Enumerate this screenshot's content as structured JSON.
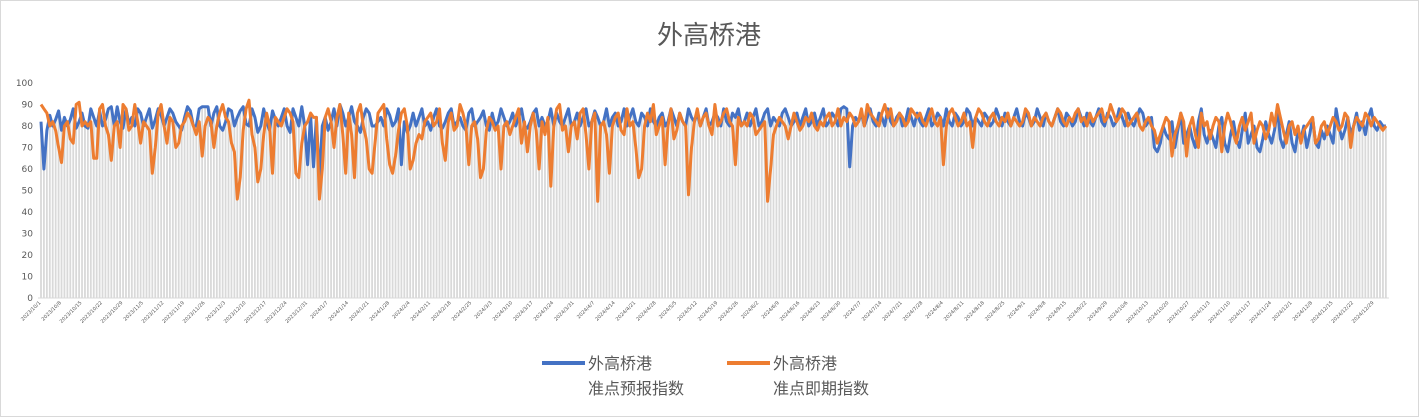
{
  "chart_data": {
    "type": "line",
    "title": "外高桥港",
    "xlabel": "",
    "ylabel": "",
    "ylim": [
      0,
      100
    ],
    "yticks": [
      0,
      10,
      20,
      30,
      40,
      50,
      60,
      70,
      80,
      90,
      100
    ],
    "grid": false,
    "legend_position": "bottom",
    "x_tick_labels": [
      "2023/10/1",
      "2023/10/8",
      "2023/10/15",
      "2023/10/22",
      "2023/10/29",
      "2023/11/5",
      "2023/11/12",
      "2023/11/19",
      "2023/11/26",
      "2023/12/3",
      "2023/12/10",
      "2023/12/17",
      "2023/12/24",
      "2023/12/31",
      "2024/1/7",
      "2024/1/14",
      "2024/1/21",
      "2024/1/28",
      "2024/2/4",
      "2024/2/11",
      "2024/2/18",
      "2024/2/25",
      "2024/3/3",
      "2024/3/10",
      "2024/3/17",
      "2024/3/24",
      "2024/3/31",
      "2024/4/7",
      "2024/4/14",
      "2024/4/21",
      "2024/4/28",
      "2024/5/5",
      "2024/5/12",
      "2024/5/19",
      "2024/5/26",
      "2024/6/2",
      "2024/6/9",
      "2024/6/16",
      "2024/6/23",
      "2024/6/30",
      "2024/7/7",
      "2024/7/14",
      "2024/7/21",
      "2024/7/28",
      "2024/8/4",
      "2024/8/11",
      "2024/8/18",
      "2024/8/25",
      "2024/9/1",
      "2024/9/8",
      "2024/9/15",
      "2024/9/22",
      "2024/9/29",
      "2024/10/6",
      "2024/10/13",
      "2024/10/20",
      "2024/10/27",
      "2024/11/3",
      "2024/11/10",
      "2024/11/17",
      "2024/11/24",
      "2024/12/1",
      "2024/12/8",
      "2024/12/15",
      "2024/12/22",
      "2024/12/29"
    ],
    "bar_color": "#d9d9d9",
    "series": [
      {
        "name_line1": "外高桥港",
        "name_line2": "准点预报指数",
        "color": "#4472C4",
        "values": [
          82,
          60,
          78,
          85,
          80,
          83,
          87,
          78,
          84,
          80,
          83,
          88,
          79,
          82,
          86,
          80,
          79,
          88,
          84,
          80,
          87,
          80,
          83,
          88,
          89,
          80,
          89,
          82,
          79,
          88,
          81,
          84,
          80,
          88,
          86,
          80,
          84,
          88,
          79,
          83,
          88,
          85,
          80,
          84,
          88,
          86,
          82,
          80,
          78,
          84,
          89,
          87,
          80,
          80,
          88,
          89,
          89,
          89,
          80,
          86,
          89,
          80,
          78,
          82,
          88,
          87,
          80,
          84,
          87,
          89,
          81,
          80,
          88,
          84,
          77,
          80,
          88,
          82,
          78,
          87,
          83,
          80,
          84,
          88,
          80,
          77,
          88,
          84,
          80,
          89,
          80,
          62,
          85,
          61,
          84,
          55,
          80,
          84,
          78,
          82,
          88,
          80,
          90,
          86,
          80,
          84,
          89,
          82,
          80,
          77,
          84,
          88,
          86,
          80,
          80,
          82,
          84,
          80,
          88,
          85,
          80,
          82,
          88,
          62,
          82,
          77,
          80,
          86,
          80,
          84,
          88,
          80,
          82,
          78,
          84,
          88,
          80,
          79,
          82,
          86,
          88,
          80,
          82,
          84,
          80,
          78,
          86,
          88,
          80,
          82,
          84,
          87,
          80,
          78,
          86,
          80,
          82,
          88,
          84,
          80,
          82,
          86,
          80,
          84,
          88,
          80,
          79,
          82,
          86,
          88,
          80,
          84,
          80,
          82,
          88,
          80,
          86,
          82,
          80,
          84,
          88,
          80,
          82,
          86,
          80,
          84,
          88,
          80,
          82,
          87,
          84,
          80,
          82,
          88,
          80,
          84,
          86,
          80,
          82,
          88,
          80,
          84,
          88,
          82,
          80,
          86,
          84,
          80,
          88,
          82,
          80,
          84,
          86,
          80,
          82,
          88,
          84,
          80,
          86,
          82,
          80,
          88,
          84,
          82,
          86,
          80,
          84,
          88,
          80,
          82,
          86,
          84,
          80,
          88,
          82,
          80,
          86,
          84,
          88,
          80,
          82,
          86,
          80,
          84,
          88,
          80,
          82,
          86,
          88,
          80,
          84,
          82,
          80,
          86,
          88,
          84,
          80,
          82,
          86,
          80,
          84,
          88,
          80,
          82,
          86,
          80,
          84,
          88,
          80,
          82,
          86,
          84,
          80,
          88,
          89,
          88,
          61,
          80,
          84,
          82,
          86,
          80,
          84,
          88,
          82,
          80,
          86,
          84,
          80,
          88,
          82,
          80,
          84,
          86,
          80,
          82,
          88,
          84,
          80,
          86,
          82,
          80,
          84,
          88,
          80,
          82,
          86,
          84,
          80,
          88,
          82,
          80,
          86,
          84,
          80,
          82,
          88,
          86,
          80,
          84,
          82,
          80,
          86,
          84,
          80,
          82,
          88,
          84,
          80,
          86,
          82,
          80,
          84,
          88,
          82,
          80,
          86,
          84,
          80,
          82,
          88,
          84,
          80,
          86,
          82,
          80,
          84,
          88,
          82,
          80,
          86,
          84,
          80,
          82,
          88,
          84,
          80,
          86,
          82,
          80,
          84,
          88,
          82,
          80,
          86,
          84,
          80,
          82,
          88,
          84,
          80,
          86,
          82,
          80,
          84,
          88,
          86,
          80,
          82,
          84,
          70,
          68,
          72,
          80,
          76,
          74,
          82,
          70,
          78,
          86,
          72,
          76,
          80,
          74,
          70,
          82,
          88,
          76,
          72,
          78,
          74,
          70,
          80,
          84,
          72,
          68,
          76,
          82,
          74,
          70,
          78,
          86,
          72,
          76,
          80,
          70,
          68,
          74,
          82,
          76,
          72,
          78,
          88,
          74,
          70,
          76,
          82,
          72,
          68,
          78,
          74,
          80,
          70,
          76,
          84,
          72,
          70,
          78,
          74,
          80,
          76,
          72,
          88,
          80,
          74,
          78,
          84,
          76,
          80,
          86,
          78,
          82,
          76,
          84,
          88,
          80,
          78,
          82,
          80,
          80
        ]
      },
      {
        "name_line1": "外高桥港",
        "name_line2": "准点即期指数",
        "color": "#ED7D31",
        "values": [
          90,
          88,
          86,
          80,
          82,
          78,
          70,
          63,
          80,
          82,
          74,
          72,
          90,
          91,
          80,
          82,
          80,
          82,
          65,
          65,
          88,
          90,
          80,
          76,
          64,
          80,
          82,
          70,
          90,
          88,
          78,
          80,
          90,
          82,
          72,
          82,
          80,
          78,
          58,
          70,
          86,
          90,
          80,
          72,
          84,
          82,
          70,
          72,
          80,
          82,
          86,
          84,
          80,
          76,
          82,
          66,
          80,
          84,
          82,
          70,
          80,
          86,
          90,
          84,
          82,
          72,
          68,
          46,
          56,
          78,
          88,
          92,
          76,
          70,
          54,
          60,
          76,
          86,
          80,
          58,
          84,
          82,
          80,
          84,
          88,
          86,
          82,
          58,
          56,
          72,
          80,
          82,
          86,
          84,
          84,
          46,
          60,
          84,
          88,
          82,
          70,
          84,
          90,
          76,
          58,
          86,
          76,
          56,
          86,
          90,
          80,
          74,
          60,
          58,
          72,
          86,
          88,
          90,
          74,
          62,
          58,
          66,
          78,
          86,
          88,
          80,
          60,
          64,
          72,
          76,
          74,
          82,
          84,
          86,
          80,
          82,
          88,
          72,
          64,
          82,
          86,
          78,
          80,
          90,
          86,
          80,
          62,
          80,
          82,
          74,
          56,
          60,
          78,
          84,
          82,
          78,
          80,
          60,
          80,
          82,
          76,
          80,
          84,
          88,
          72,
          82,
          68,
          80,
          86,
          78,
          60,
          82,
          76,
          84,
          52,
          80,
          88,
          90,
          78,
          80,
          68,
          80,
          82,
          74,
          86,
          88,
          76,
          60,
          82,
          86,
          45,
          80,
          82,
          76,
          58,
          80,
          84,
          86,
          78,
          76,
          88,
          80,
          82,
          70,
          56,
          60,
          80,
          86,
          82,
          90,
          76,
          80,
          84,
          62,
          80,
          88,
          74,
          78,
          86,
          82,
          80,
          48,
          70,
          82,
          88,
          80,
          84,
          86,
          80,
          76,
          90,
          80,
          82,
          86,
          88,
          82,
          80,
          62,
          84,
          80,
          82,
          80,
          86,
          84,
          76,
          78,
          80,
          82,
          45,
          60,
          76,
          80,
          84,
          82,
          80,
          74,
          80,
          86,
          82,
          78,
          80,
          84,
          82,
          86,
          80,
          78,
          82,
          80,
          84,
          86,
          80,
          82,
          88,
          80,
          84,
          82,
          86,
          84,
          80,
          82,
          88,
          80,
          90,
          86,
          84,
          82,
          80,
          86,
          90,
          84,
          88,
          80,
          82,
          86,
          84,
          80,
          82,
          88,
          86,
          84,
          86,
          82,
          80,
          84,
          88,
          82,
          80,
          84,
          62,
          80,
          86,
          88,
          84,
          80,
          82,
          86,
          80,
          82,
          70,
          84,
          88,
          86,
          82,
          80,
          84,
          86,
          82,
          80,
          84,
          82,
          86,
          80,
          84,
          82,
          80,
          82,
          88,
          86,
          80,
          84,
          82,
          80,
          84,
          86,
          82,
          80,
          84,
          88,
          86,
          82,
          80,
          84,
          82,
          86,
          88,
          82,
          84,
          80,
          86,
          82,
          84,
          86,
          88,
          82,
          84,
          90,
          86,
          82,
          84,
          88,
          86,
          80,
          82,
          84,
          86,
          80,
          78,
          82,
          84,
          80,
          78,
          72,
          76,
          80,
          84,
          82,
          66,
          76,
          80,
          86,
          82,
          66,
          80,
          84,
          76,
          70,
          86,
          80,
          82,
          74,
          80,
          84,
          82,
          68,
          80,
          86,
          82,
          76,
          72,
          80,
          84,
          78,
          82,
          86,
          72,
          78,
          82,
          80,
          74,
          78,
          86,
          80,
          90,
          84,
          78,
          72,
          80,
          82,
          76,
          80,
          72,
          78,
          80,
          82,
          84,
          72,
          74,
          80,
          82,
          76,
          80,
          84,
          82,
          78,
          80,
          86,
          84,
          70,
          80,
          84,
          82,
          80,
          86,
          84,
          80,
          84,
          82,
          80,
          78,
          80
        ]
      }
    ]
  }
}
